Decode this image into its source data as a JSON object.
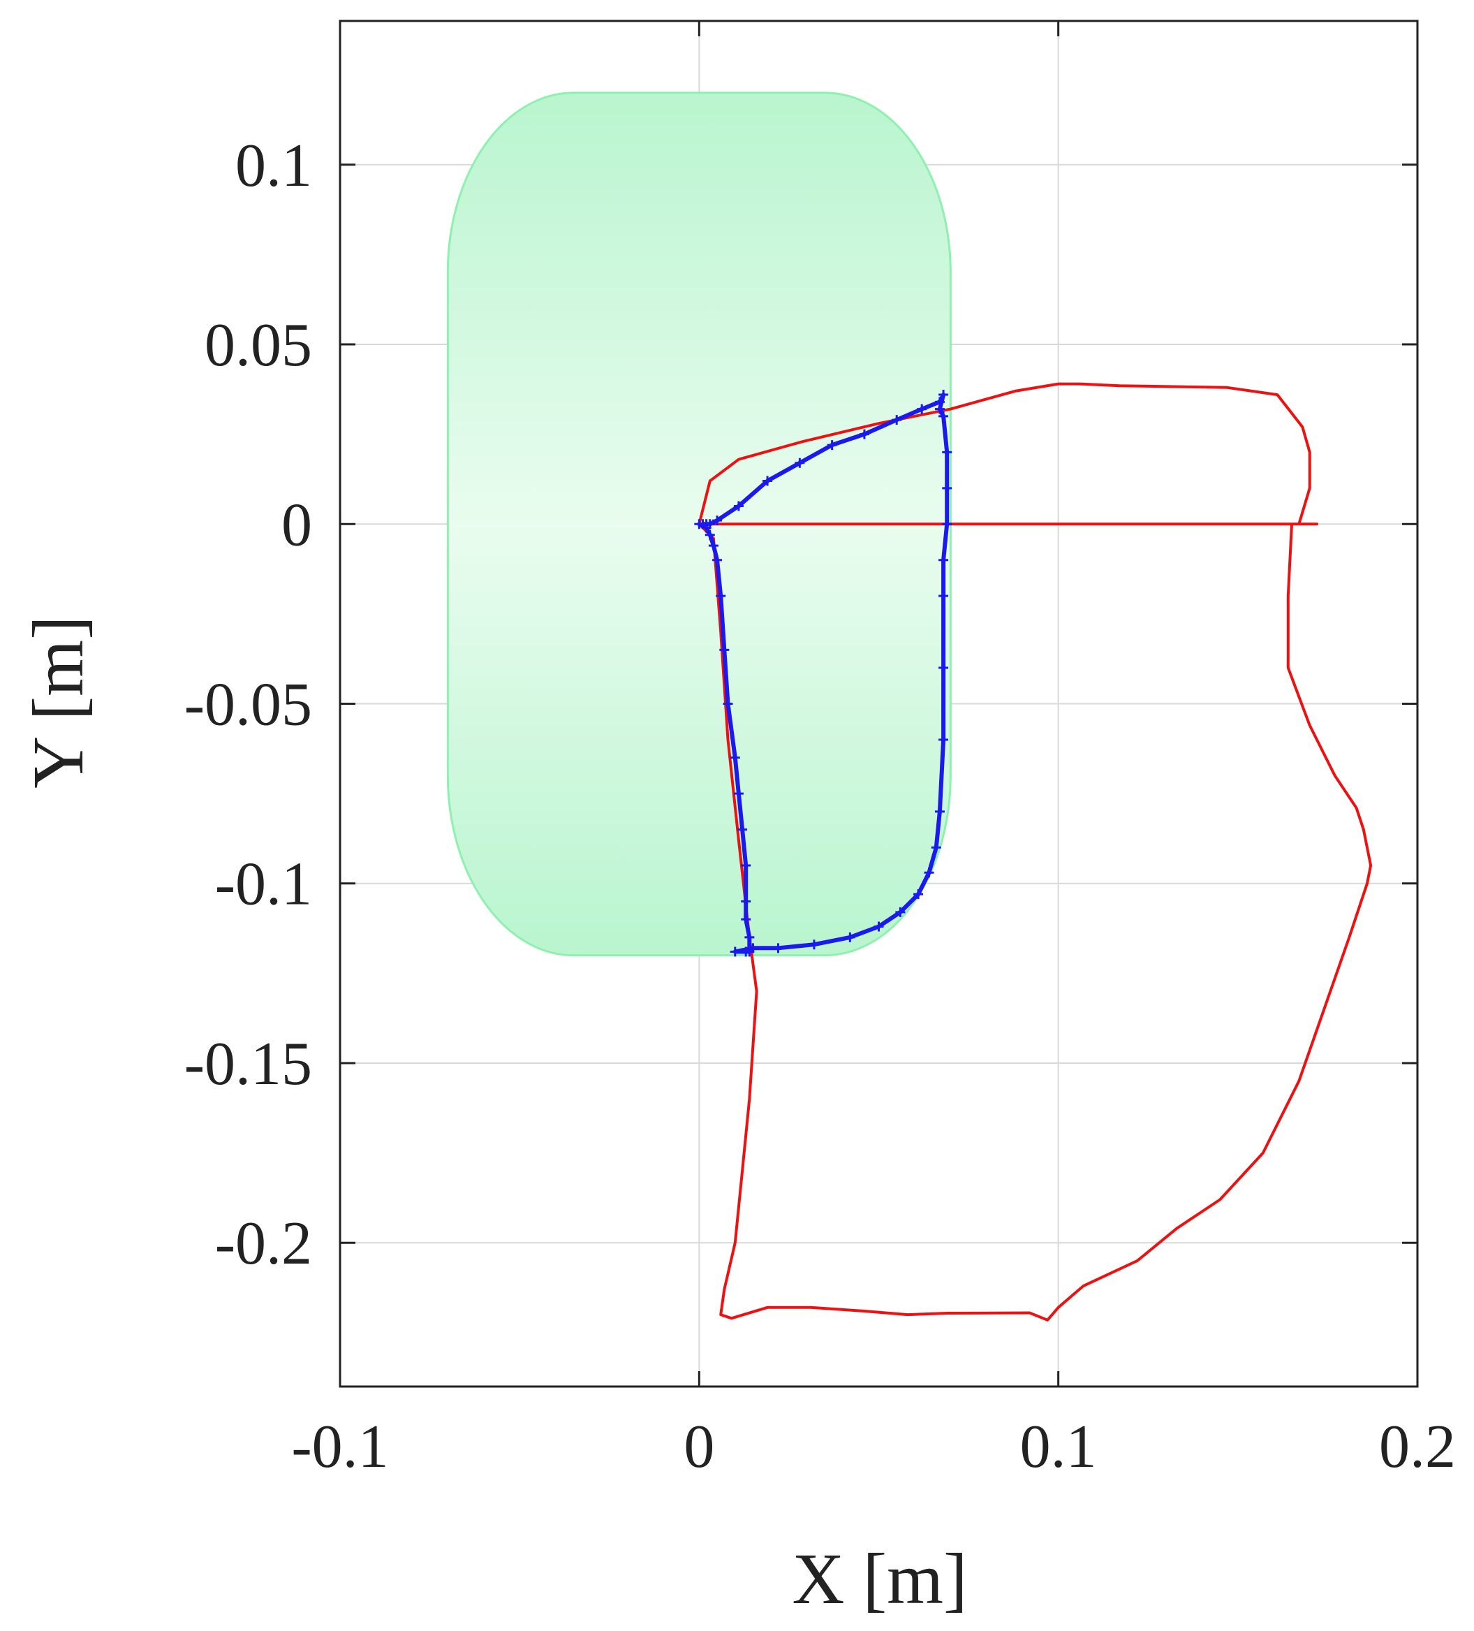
{
  "chart_data": {
    "type": "line",
    "xlabel": "X [m]",
    "ylabel": "Y [m]",
    "xlim": [
      -0.1,
      0.2
    ],
    "ylim": [
      -0.24,
      0.14
    ],
    "xticks": [
      -0.1,
      0,
      0.1,
      0.2
    ],
    "xtick_labels": [
      "-0.1",
      "0",
      "0.1",
      "0.2"
    ],
    "yticks": [
      -0.2,
      -0.15,
      -0.1,
      -0.05,
      0,
      0.05,
      0.1
    ],
    "ytick_labels": [
      "-0.2",
      "-0.15",
      "-0.1",
      "-0.05",
      "0",
      "0.05",
      "0.1"
    ],
    "grid": true,
    "legend": "none",
    "region": {
      "shape": "rounded-rectangle",
      "xmin": -0.07,
      "xmax": 0.07,
      "ymin": -0.12,
      "ymax": 0.12,
      "corner_radius_x": 0.035,
      "corner_radius_y": 0.05,
      "color": "#8ff0b0"
    },
    "series": [
      {
        "color": "#ee1111",
        "marker": "none",
        "x": [
          0.0,
          0.004,
          0.006,
          0.008,
          0.011,
          0.014,
          0.016,
          0.014,
          0.012,
          0.01,
          0.007,
          0.006,
          0.009,
          0.019,
          0.031,
          0.046,
          0.058,
          0.069,
          0.092,
          0.097,
          0.1,
          0.107,
          0.122,
          0.133,
          0.145,
          0.157,
          0.167,
          0.174,
          0.181,
          0.186,
          0.187,
          0.185,
          0.183,
          0.177,
          0.17,
          0.164,
          0.164,
          0.165,
          0.167,
          0.17,
          0.17,
          0.168,
          0.161,
          0.147,
          0.117,
          0.106,
          0.1,
          0.088,
          0.07,
          0.05,
          0.029,
          0.011,
          0.003,
          0.0,
          0.019,
          0.03,
          0.044,
          0.058,
          0.068,
          0.08,
          0.098,
          0.11,
          0.13,
          0.158,
          0.167,
          0.172,
          0.172
        ],
        "y": [
          0.0,
          -0.004,
          -0.03,
          -0.06,
          -0.088,
          -0.115,
          -0.13,
          -0.16,
          -0.18,
          -0.2,
          -0.213,
          -0.22,
          -0.221,
          -0.218,
          -0.218,
          -0.219,
          -0.22,
          -0.2196,
          -0.2195,
          -0.2215,
          -0.218,
          -0.212,
          -0.205,
          -0.196,
          -0.188,
          -0.175,
          -0.155,
          -0.135,
          -0.115,
          -0.1,
          -0.095,
          -0.085,
          -0.079,
          -0.07,
          -0.056,
          -0.04,
          -0.02,
          -0.0,
          0.0,
          0.01,
          0.02,
          0.027,
          0.036,
          0.038,
          0.0385,
          0.039,
          0.039,
          0.037,
          0.032,
          0.028,
          0.023,
          0.018,
          0.012,
          0.0,
          0.0,
          0.0,
          0.0,
          0.0,
          0.0,
          0.0,
          0.0,
          0.0,
          0.0,
          0.0,
          0.0,
          0.0,
          0.0
        ]
      },
      {
        "color": "#1a1aee",
        "marker": "plus",
        "x": [
          0.0,
          0.002,
          0.003,
          0.004,
          0.005,
          0.006,
          0.007,
          0.008,
          0.01,
          0.011,
          0.012,
          0.013,
          0.013,
          0.013,
          0.014,
          0.014,
          0.013,
          0.01,
          0.015,
          0.022,
          0.032,
          0.042,
          0.05,
          0.056,
          0.061,
          0.064,
          0.066,
          0.067,
          0.068,
          0.068,
          0.068,
          0.068,
          0.069,
          0.069,
          0.069,
          0.068,
          0.067,
          0.068,
          0.067,
          0.062,
          0.055,
          0.046,
          0.037,
          0.028,
          0.019,
          0.011,
          0.005,
          0.003,
          0.002,
          0.001
        ],
        "y": [
          0.0,
          -0.001,
          -0.003,
          -0.006,
          -0.01,
          -0.02,
          -0.035,
          -0.05,
          -0.065,
          -0.075,
          -0.085,
          -0.095,
          -0.105,
          -0.11,
          -0.115,
          -0.119,
          -0.119,
          -0.119,
          -0.118,
          -0.118,
          -0.117,
          -0.115,
          -0.112,
          -0.108,
          -0.103,
          -0.097,
          -0.09,
          -0.08,
          -0.06,
          -0.04,
          -0.02,
          -0.01,
          0.0,
          0.01,
          0.02,
          0.03,
          0.032,
          0.036,
          0.034,
          0.032,
          0.029,
          0.025,
          0.022,
          0.017,
          0.012,
          0.005,
          0.001,
          0.0,
          0.0,
          0.0
        ]
      }
    ]
  }
}
